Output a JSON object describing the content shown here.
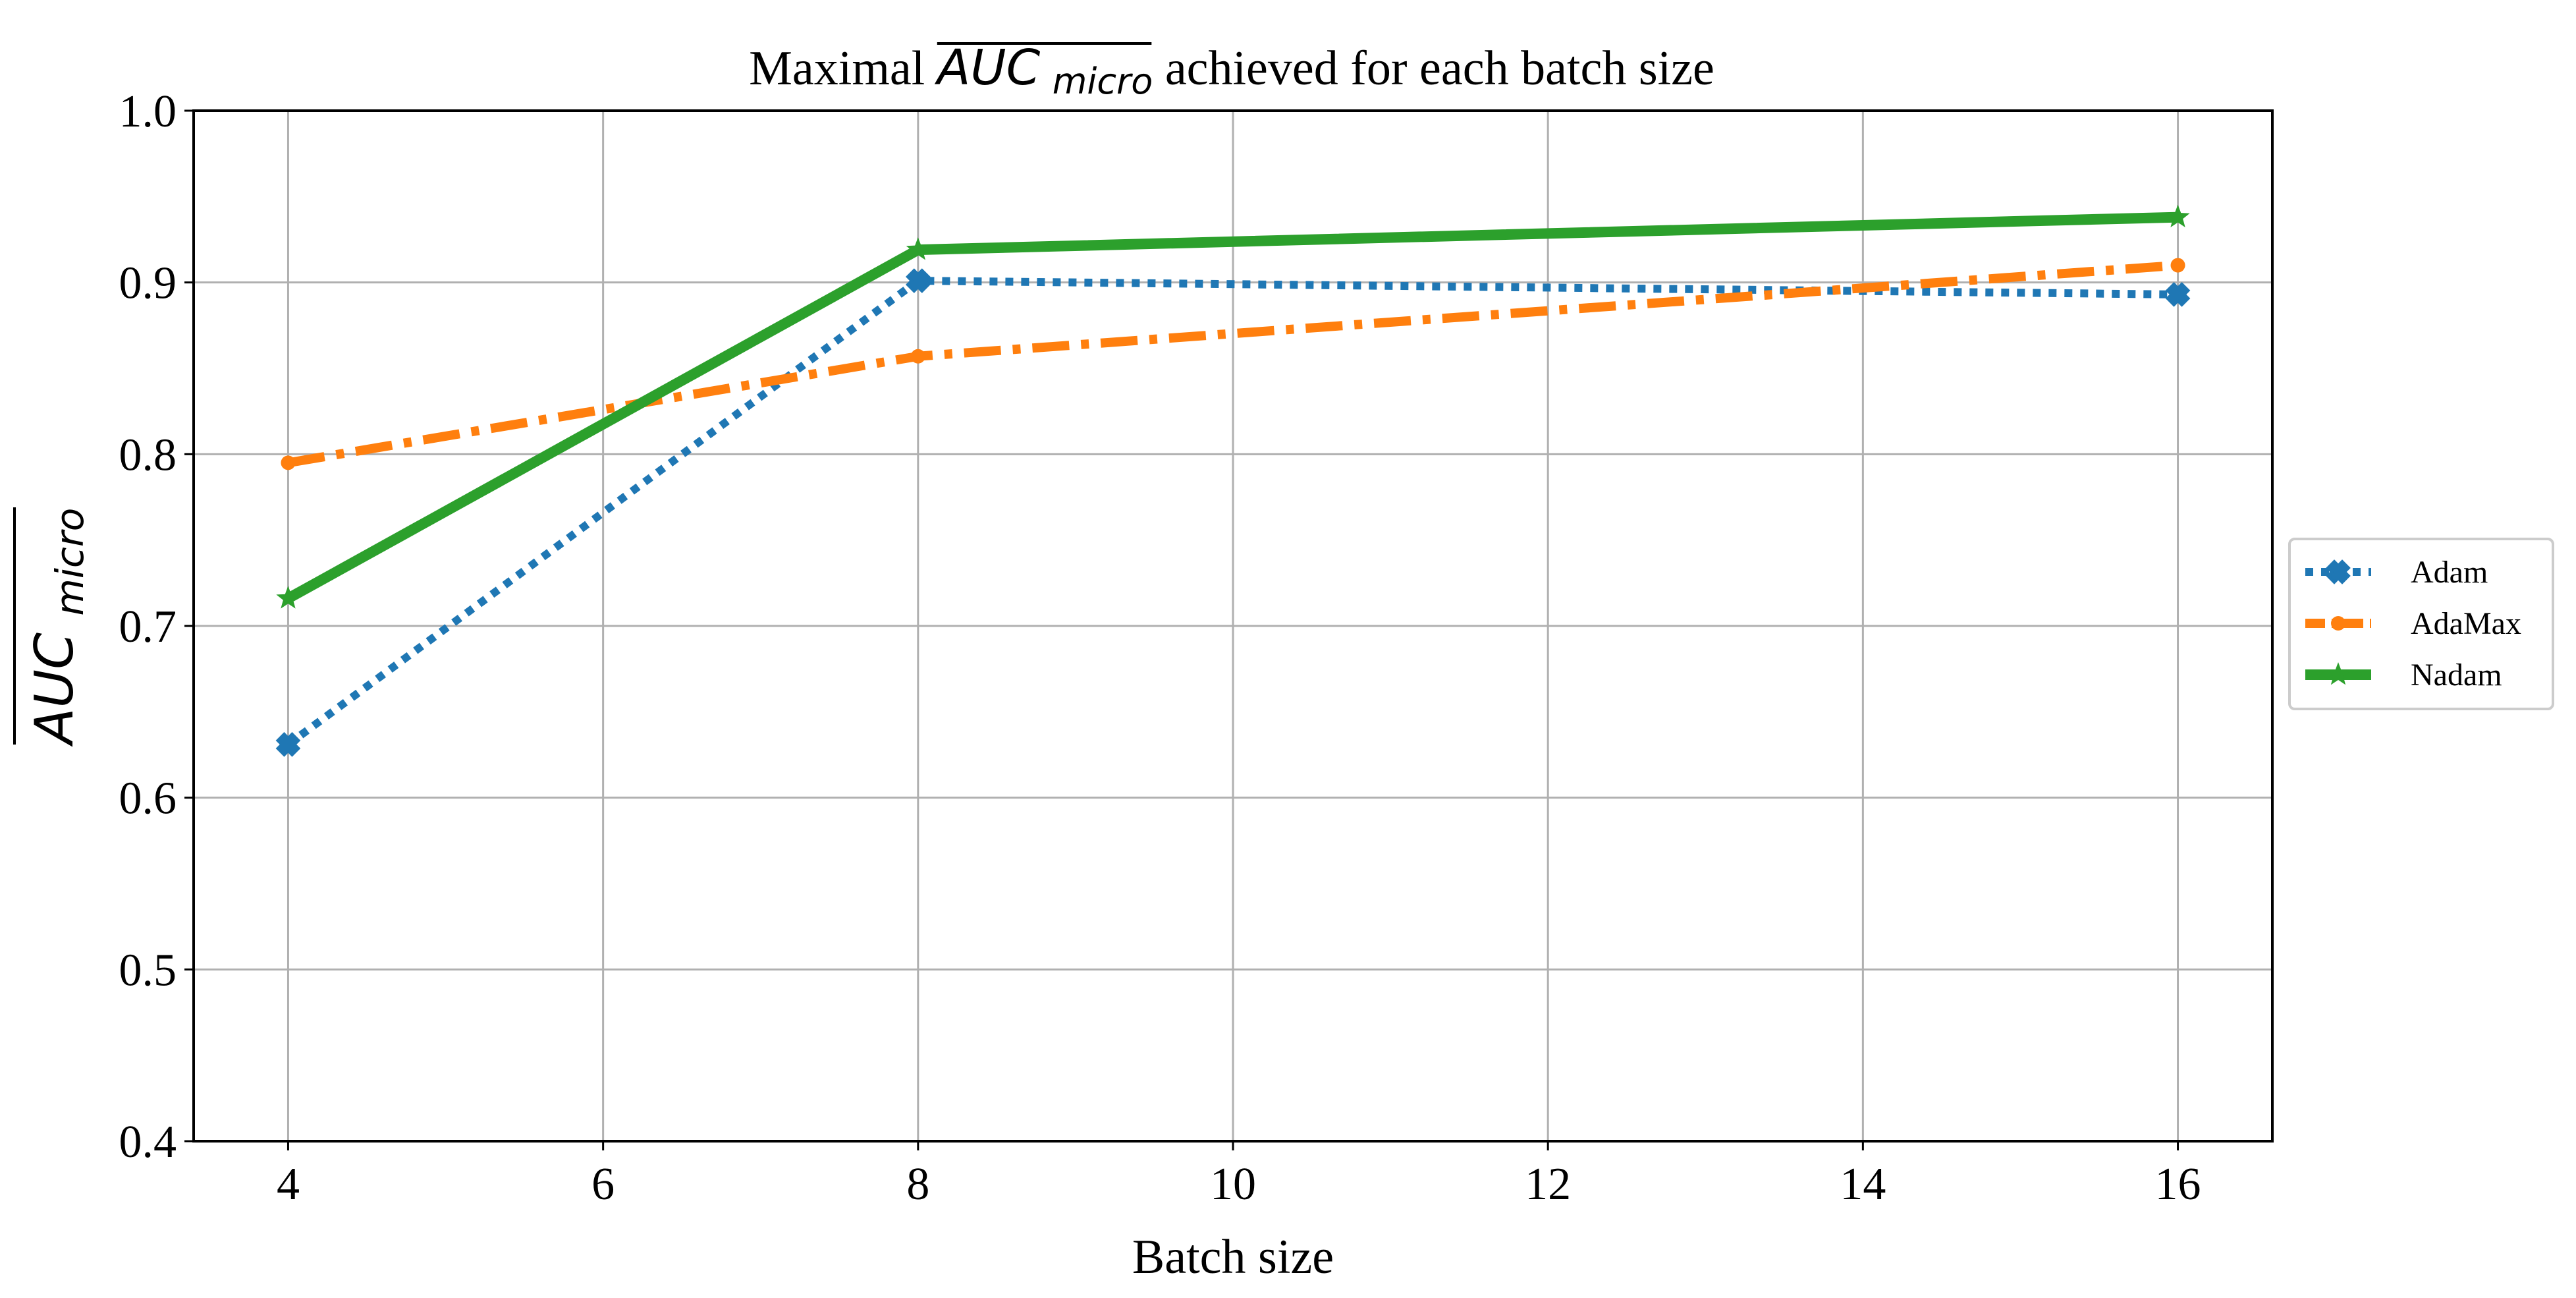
{
  "chart_data": {
    "type": "line",
    "title": {
      "prefix": "Maximal ",
      "metric_main": "AUC",
      "metric_sub": "micro",
      "suffix": " achieved for each batch size"
    },
    "xlabel": "Batch size",
    "ylabel": {
      "main": "AUC",
      "sub": "micro"
    },
    "xlim": [
      3.4,
      16.6
    ],
    "ylim": [
      0.4,
      1.0
    ],
    "xticks": [
      4,
      6,
      8,
      10,
      12,
      14,
      16
    ],
    "xtick_labels": [
      "4",
      "6",
      "8",
      "10",
      "12",
      "14",
      "16"
    ],
    "yticks": [
      0.4,
      0.5,
      0.6,
      0.7,
      0.8,
      0.9,
      1.0
    ],
    "ytick_labels": [
      "0.4",
      "0.5",
      "0.6",
      "0.7",
      "0.8",
      "0.9",
      "1.0"
    ],
    "grid": true,
    "legend": "center-right, outside plot",
    "series": [
      {
        "name": "Adam",
        "x": [
          4,
          8,
          16
        ],
        "values": [
          0.631,
          0.901,
          0.893
        ],
        "color": "#1f77b4",
        "linestyle": "dotted",
        "marker": "X"
      },
      {
        "name": "AdaMax",
        "x": [
          4,
          8,
          16
        ],
        "values": [
          0.795,
          0.857,
          0.91
        ],
        "color": "#ff7f0e",
        "linestyle": "dashdot",
        "marker": "o"
      },
      {
        "name": "Nadam",
        "x": [
          4,
          8,
          16
        ],
        "values": [
          0.716,
          0.919,
          0.938
        ],
        "color": "#2ca02c",
        "linestyle": "solid",
        "marker": "*"
      }
    ]
  }
}
